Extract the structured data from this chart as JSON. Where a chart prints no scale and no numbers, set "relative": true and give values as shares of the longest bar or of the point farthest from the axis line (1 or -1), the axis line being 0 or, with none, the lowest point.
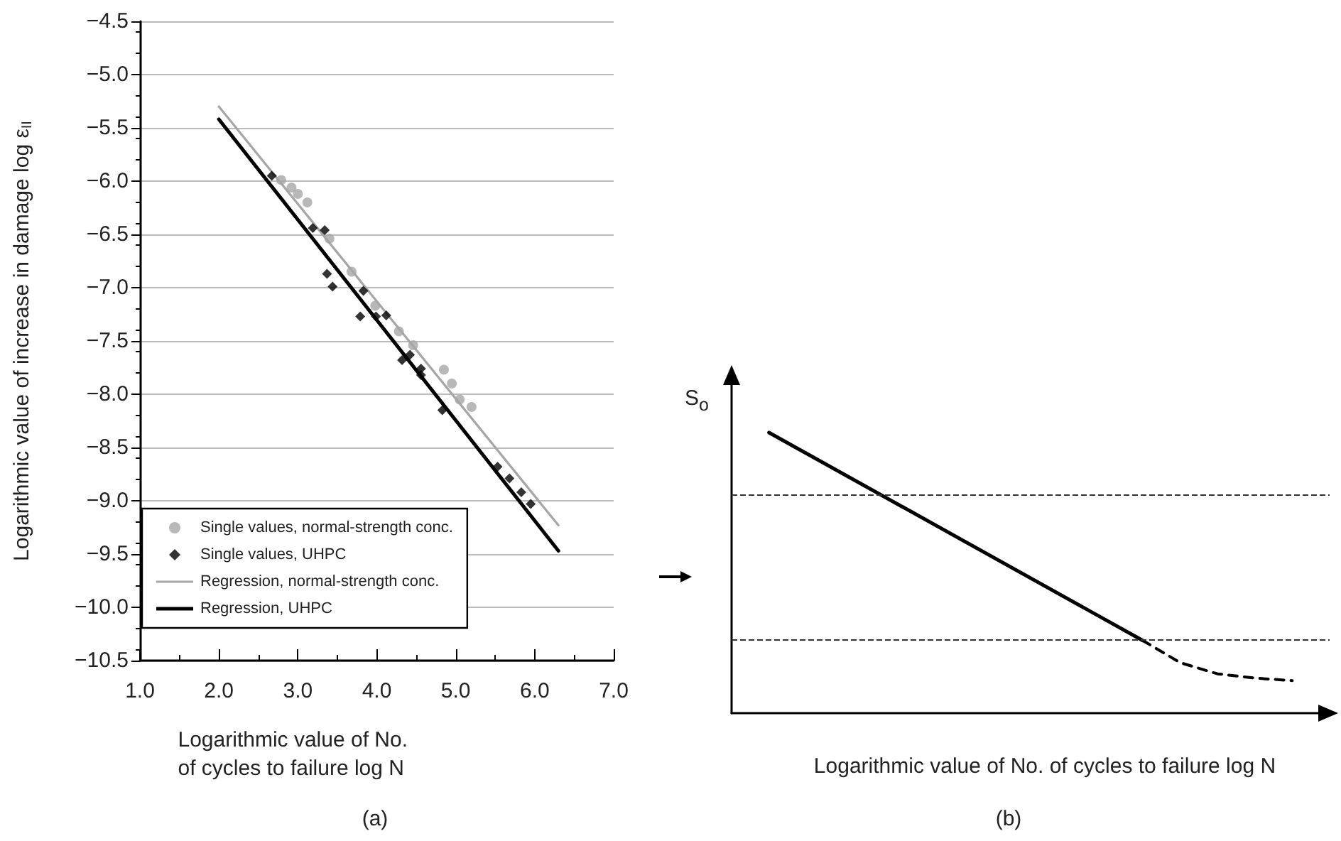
{
  "chart_data": [
    {
      "type": "scatter",
      "annotations": [
        "(a)"
      ],
      "xlabel": "Logarithmic value of No.\nof cycles to failure log N",
      "ylabel": "Logarithmic value of increase in damage log ε$_{II}$",
      "xlim": [
        1,
        7
      ],
      "xticks": [
        {
          "value": 1,
          "label": "1.0"
        },
        {
          "value": 2,
          "label": "2.0"
        },
        {
          "value": 3,
          "label": "3.0"
        },
        {
          "value": 4,
          "label": "4.0"
        },
        {
          "value": 5,
          "label": "5.0"
        },
        {
          "value": 6,
          "label": "6.0"
        },
        {
          "value": 7,
          "label": "7.0"
        }
      ],
      "ylim": [
        -10.5,
        -4.5
      ],
      "yticks": [
        {
          "value": -10.5,
          "label": "−10.5"
        },
        {
          "value": -10,
          "label": "−10.0"
        },
        {
          "value": -9.5,
          "label": "−9.5"
        },
        {
          "value": -9,
          "label": "−9.0"
        },
        {
          "value": -8.5,
          "label": "−8.5"
        },
        {
          "value": -8,
          "label": "−8.0"
        },
        {
          "value": -7.5,
          "label": "−7.5"
        },
        {
          "value": -7,
          "label": "−7.0"
        },
        {
          "value": -6.5,
          "label": "−6.5"
        },
        {
          "value": -6,
          "label": "−6.0"
        },
        {
          "value": -5.5,
          "label": "−5.5"
        },
        {
          "value": -5,
          "label": "−5.0"
        },
        {
          "value": -4.5,
          "label": "−4.5"
        }
      ],
      "grid": "y",
      "legend": "bottom left",
      "series": [
        {
          "name": "Single values, normal-strength conc.",
          "type": "scatter",
          "marker": "circle",
          "color": "#a6a6a6",
          "x": [
            2.79,
            2.92,
            3.0,
            3.12,
            3.4,
            3.68,
            3.98,
            4.28,
            4.46,
            4.85,
            4.95,
            5.05,
            5.2
          ],
          "values": [
            -5.99,
            -6.06,
            -6.12,
            -6.2,
            -6.54,
            -6.85,
            -7.17,
            -7.41,
            -7.54,
            -7.77,
            -7.9,
            -8.05,
            -8.12
          ]
        },
        {
          "name": "Single values, UHPC",
          "type": "scatter",
          "marker": "diamond",
          "color": "#000000",
          "x": [
            2.67,
            3.19,
            3.34,
            3.37,
            3.44,
            3.83,
            3.79,
            3.99,
            4.12,
            4.32,
            4.42,
            4.56,
            4.56,
            4.83,
            5.53,
            5.68,
            5.83,
            5.95
          ],
          "values": [
            -5.95,
            -6.44,
            -6.46,
            -6.87,
            -6.99,
            -7.03,
            -7.27,
            -7.27,
            -7.26,
            -7.68,
            -7.63,
            -7.76,
            -7.82,
            -8.15,
            -8.68,
            -8.79,
            -8.92,
            -9.03
          ]
        },
        {
          "name": "Regression, normal-strength conc.",
          "type": "line",
          "marker": "none",
          "line_style": "solid",
          "color": "#a6a6a6",
          "x": [
            2.0,
            6.3
          ],
          "values": [
            -5.3,
            -9.23
          ]
        },
        {
          "name": "Regression, UHPC",
          "type": "line",
          "marker": "none",
          "line_style": "solid",
          "color": "#000000",
          "x": [
            2.0,
            6.3
          ],
          "values": [
            -5.42,
            -9.47
          ]
        }
      ]
    },
    {
      "type": "line",
      "relative": true,
      "annotations": [
        "(b)"
      ],
      "xlabel": "Logarithmic value of No. of cycles to failure log N",
      "ylabel": "S$_{o}$",
      "grid": false,
      "legend": false,
      "categories": [
        null,
        null,
        null,
        null,
        null,
        null,
        null,
        null,
        null,
        null,
        null,
        null,
        null,
        null,
        null,
        null,
        null
      ],
      "series": [
        {
          "color": "#000000",
          "line_style": "solid",
          "marker": "none",
          "values": [
            null,
            1,
            null,
            null,
            null,
            null,
            null,
            null,
            null,
            null,
            null,
            0.259,
            null,
            null,
            null,
            null,
            null
          ]
        },
        {
          "color": "#000000",
          "line_style": "dashed",
          "marker": "none",
          "values": [
            null,
            null,
            null,
            null,
            null,
            null,
            null,
            null,
            null,
            null,
            null,
            0.259,
            0.18,
            0.14,
            0.125,
            0.116,
            null
          ]
        }
      ],
      "ref_lines": [
        {
          "axis": "y",
          "value": 0.778,
          "line_style": "dashed",
          "color": "#333333"
        },
        {
          "axis": "y",
          "value": 0.259,
          "line_style": "dashed",
          "color": "#333333"
        }
      ]
    }
  ]
}
